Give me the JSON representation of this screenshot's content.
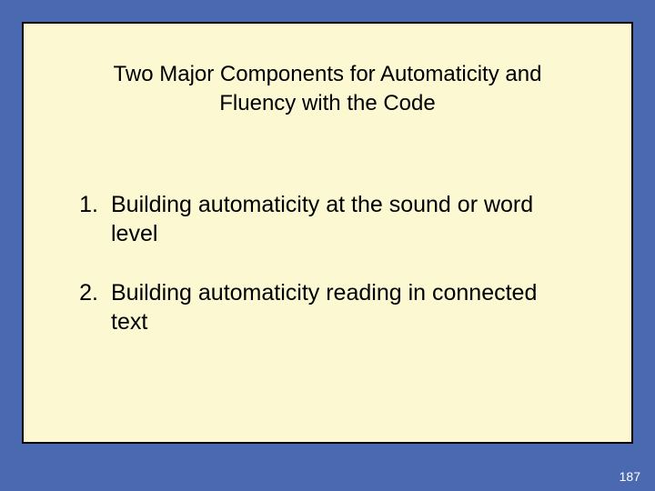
{
  "slide": {
    "background_color": "#4a69b0",
    "content_background": "#fbf8d2",
    "border_color": "#000000",
    "text_color": "#000000",
    "title_fontsize": 24,
    "body_fontsize": 25,
    "title_line1": "Two Major Components for Automaticity and",
    "title_line2": "Fluency with the Code",
    "items": [
      {
        "num": "1.",
        "text": "Building automaticity at the sound or word level"
      },
      {
        "num": "2.",
        "text": "Building automaticity reading in connected text"
      }
    ],
    "page_number": "187",
    "page_number_color": "#ffffff",
    "page_number_fontsize": 14
  }
}
